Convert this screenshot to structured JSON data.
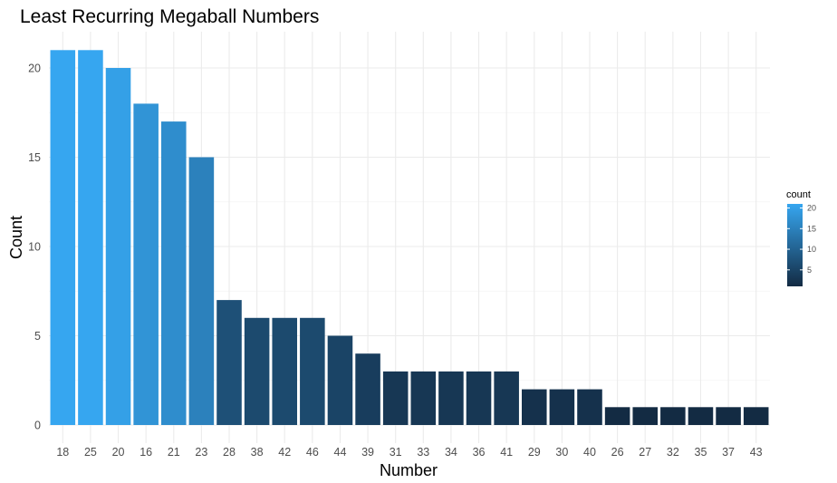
{
  "chart_data": {
    "type": "bar",
    "title": "Least Recurring Megaball Numbers",
    "xlabel": "Number",
    "ylabel": "Count",
    "categories": [
      "18",
      "25",
      "20",
      "16",
      "21",
      "23",
      "28",
      "38",
      "42",
      "46",
      "44",
      "39",
      "31",
      "33",
      "34",
      "36",
      "41",
      "29",
      "30",
      "40",
      "26",
      "27",
      "32",
      "35",
      "37",
      "43"
    ],
    "values": [
      21,
      21,
      20,
      18,
      17,
      15,
      7,
      6,
      6,
      6,
      5,
      4,
      3,
      3,
      3,
      3,
      3,
      2,
      2,
      2,
      1,
      1,
      1,
      1,
      1,
      1
    ],
    "ylim": [
      0,
      22
    ],
    "yticks": [
      0,
      5,
      10,
      15,
      20
    ],
    "grid": true,
    "legend": {
      "title": "count",
      "position": "right",
      "ticks": [
        5,
        10,
        15,
        20
      ],
      "range": [
        1,
        21
      ],
      "color_low": "#132b43",
      "color_high": "#36a6f0"
    }
  }
}
